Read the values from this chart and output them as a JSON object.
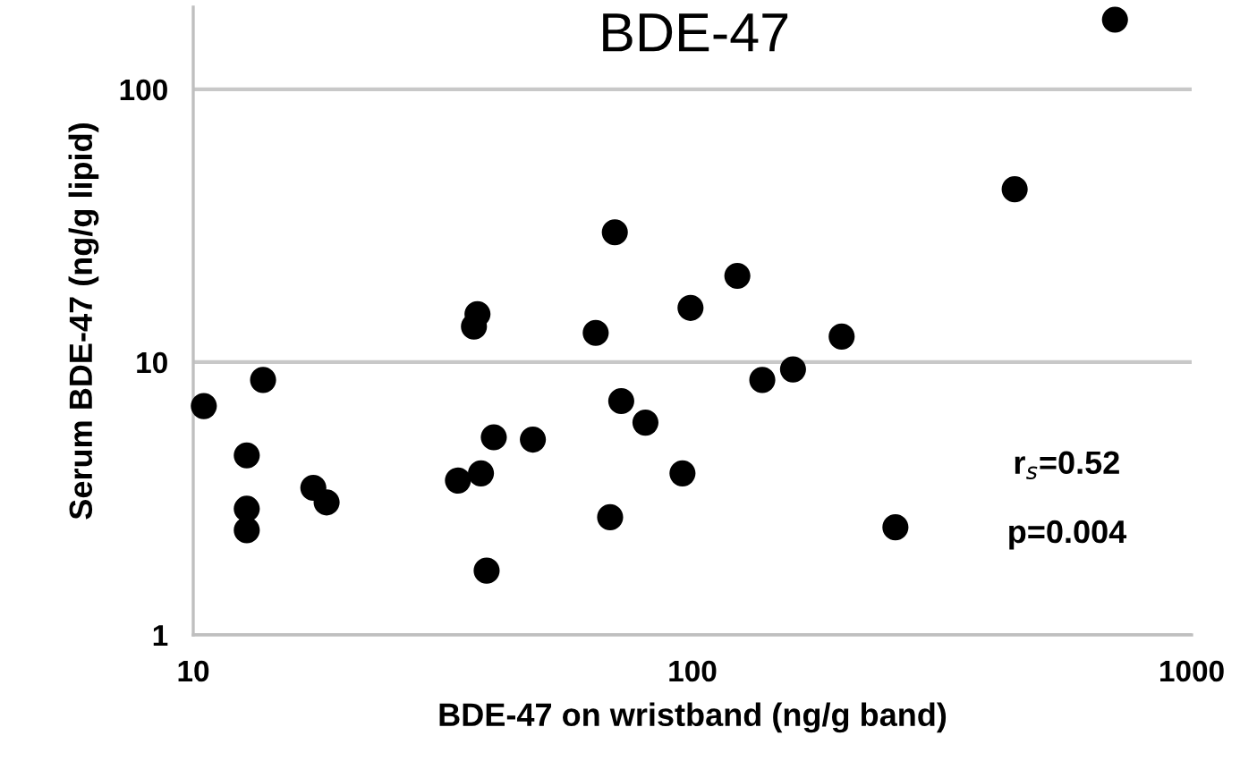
{
  "chart_data": {
    "type": "scatter",
    "title": "BDE-47",
    "xlabel": "BDE-47 on wristband (ng/g band)",
    "ylabel": "Serum BDE-47 (ng/g lipid)",
    "log": "xy",
    "xlim": [
      10,
      1000
    ],
    "ylim": [
      1,
      200
    ],
    "xticks": [
      10,
      100,
      1000
    ],
    "yticks": [
      1,
      10,
      100
    ],
    "grid": "y",
    "marker": "circle",
    "legend": false,
    "series": [
      {
        "color": "#000000",
        "x": [
          10.5,
          13.8,
          12.8,
          12.8,
          12.8,
          17.4,
          18.5,
          33.9,
          37.7,
          38.7,
          40.0,
          47.9,
          36.5,
          37.1,
          64.0,
          69.9,
          72.0,
          80.5,
          68.4,
          95.5,
          99.1,
          123,
          138,
          159,
          199,
          255,
          442,
          702
        ],
        "values": [
          6.9,
          8.6,
          4.55,
          2.9,
          2.42,
          3.46,
          3.06,
          3.68,
          3.91,
          1.72,
          5.3,
          5.2,
          13.5,
          15.0,
          12.8,
          29.9,
          7.2,
          6.0,
          2.7,
          3.91,
          15.8,
          20.7,
          8.6,
          9.4,
          12.4,
          2.48,
          43,
          180
        ]
      }
    ],
    "annotations": [
      "r$_{s}$=0.52",
      "p=0.004"
    ]
  }
}
